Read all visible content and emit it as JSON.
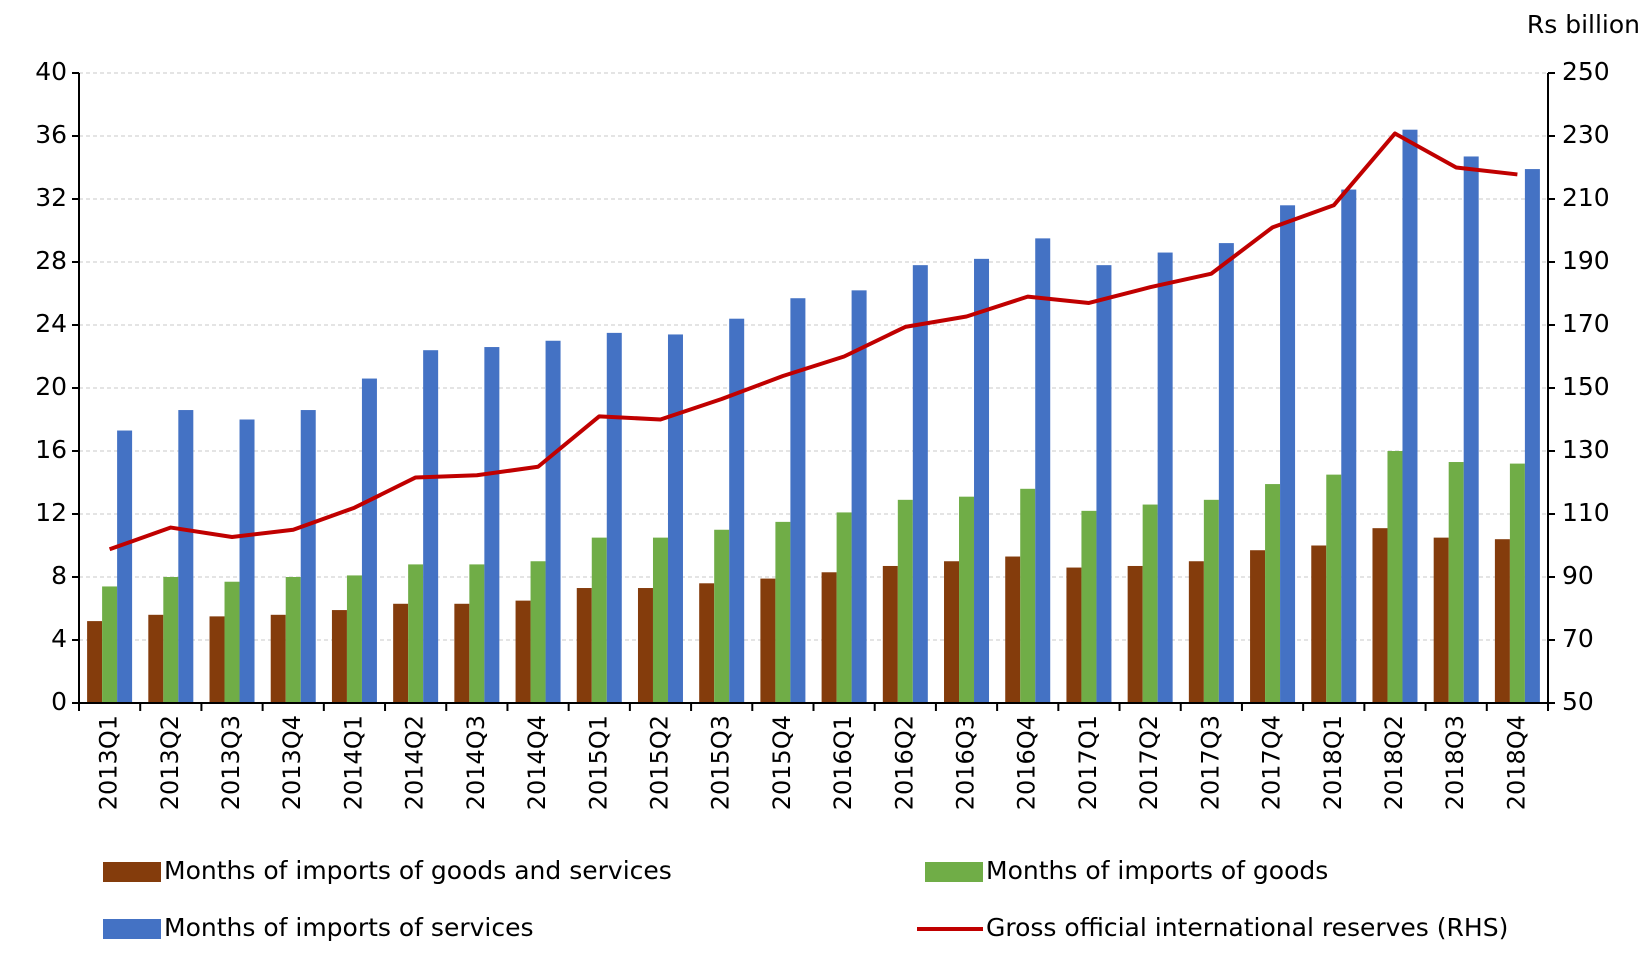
{
  "chart_data": {
    "type": "bar",
    "y2label": "Rs billion",
    "categories": [
      "2013Q1",
      "2013Q2",
      "2013Q3",
      "2013Q4",
      "2014Q1",
      "2014Q2",
      "2014Q3",
      "2014Q4",
      "2015Q1",
      "2015Q2",
      "2015Q3",
      "2015Q4",
      "2016Q1",
      "2016Q2",
      "2016Q3",
      "2016Q4",
      "2017Q1",
      "2017Q2",
      "2017Q3",
      "2017Q4",
      "2018Q1",
      "2018Q2",
      "2018Q3",
      "2018Q4"
    ],
    "series": [
      {
        "name": "Months of imports of goods and services",
        "color": "#843c0c",
        "type": "bar",
        "values": [
          5.2,
          5.6,
          5.5,
          5.6,
          5.9,
          6.3,
          6.3,
          6.5,
          7.3,
          7.3,
          7.6,
          7.9,
          8.3,
          8.7,
          9.0,
          9.3,
          8.6,
          8.7,
          9.0,
          9.7,
          10.0,
          11.1,
          10.5,
          10.4
        ]
      },
      {
        "name": "Months of imports of goods",
        "color": "#70ad47",
        "type": "bar",
        "values": [
          7.4,
          8.0,
          7.7,
          8.0,
          8.1,
          8.8,
          8.8,
          9.0,
          10.5,
          10.5,
          11.0,
          11.5,
          12.1,
          12.9,
          13.1,
          13.6,
          12.2,
          12.6,
          12.9,
          13.9,
          14.5,
          16.0,
          15.3,
          15.2
        ]
      },
      {
        "name": "Months of imports of services",
        "color": "#4472c4",
        "type": "bar",
        "values": [
          17.3,
          18.6,
          18.0,
          18.6,
          20.6,
          22.4,
          22.6,
          23.0,
          23.5,
          23.4,
          24.4,
          25.7,
          26.2,
          27.8,
          28.2,
          29.5,
          27.8,
          28.6,
          29.2,
          31.6,
          32.6,
          36.4,
          34.7,
          33.9
        ]
      },
      {
        "name": "Gross official international reserves (RHS)",
        "color": "#c00000",
        "type": "line",
        "axis": "y2",
        "values": [
          98.8,
          105.7,
          102.7,
          105,
          112,
          121.6,
          122.3,
          125,
          141,
          140,
          146.5,
          153.8,
          160,
          169.4,
          172.7,
          179,
          177,
          182,
          186.3,
          201,
          208,
          230.8,
          220,
          217.8
        ]
      }
    ],
    "ylim": [
      0,
      40
    ],
    "yticks": [
      0,
      4,
      8,
      12,
      16,
      20,
      24,
      28,
      32,
      36,
      40
    ],
    "y2lim": [
      50,
      250
    ],
    "y2ticks": [
      50,
      70,
      90,
      110,
      130,
      150,
      170,
      190,
      210,
      230,
      250
    ],
    "grid": true
  }
}
